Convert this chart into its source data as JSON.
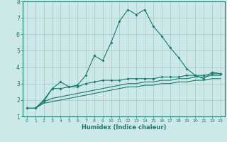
{
  "x_values": [
    0,
    1,
    2,
    3,
    4,
    5,
    6,
    7,
    8,
    9,
    10,
    11,
    12,
    13,
    14,
    15,
    16,
    17,
    18,
    19,
    20,
    21,
    22,
    23
  ],
  "line1": [
    1.5,
    1.5,
    1.9,
    2.7,
    3.1,
    2.8,
    2.9,
    3.5,
    4.7,
    4.4,
    5.5,
    6.8,
    7.5,
    7.2,
    7.5,
    6.5,
    5.9,
    5.2,
    4.6,
    3.9,
    3.5,
    3.3,
    3.7,
    3.6
  ],
  "line2": [
    1.5,
    1.5,
    2.0,
    2.7,
    2.7,
    2.8,
    2.8,
    3.0,
    3.1,
    3.2,
    3.2,
    3.2,
    3.3,
    3.3,
    3.3,
    3.3,
    3.4,
    3.4,
    3.4,
    3.5,
    3.5,
    3.5,
    3.6,
    3.6
  ],
  "line3": [
    1.5,
    1.5,
    1.9,
    2.1,
    2.2,
    2.3,
    2.4,
    2.5,
    2.6,
    2.7,
    2.8,
    2.9,
    3.0,
    3.0,
    3.1,
    3.1,
    3.2,
    3.2,
    3.3,
    3.3,
    3.4,
    3.4,
    3.5,
    3.5
  ],
  "line4": [
    1.5,
    1.5,
    1.8,
    1.9,
    2.0,
    2.1,
    2.2,
    2.3,
    2.4,
    2.5,
    2.6,
    2.7,
    2.8,
    2.8,
    2.9,
    2.9,
    3.0,
    3.0,
    3.1,
    3.1,
    3.2,
    3.2,
    3.3,
    3.3
  ],
  "line_color": "#1a7a6a",
  "bg_color": "#cce8e8",
  "grid_color": "#a0c8c8",
  "xlabel": "Humidex (Indice chaleur)",
  "ylim": [
    1,
    8
  ],
  "xlim": [
    -0.5,
    23.5
  ],
  "yticks": [
    1,
    2,
    3,
    4,
    5,
    6,
    7,
    8
  ],
  "xticks": [
    0,
    1,
    2,
    3,
    4,
    5,
    6,
    7,
    8,
    9,
    10,
    11,
    12,
    13,
    14,
    15,
    16,
    17,
    18,
    19,
    20,
    21,
    22,
    23
  ]
}
